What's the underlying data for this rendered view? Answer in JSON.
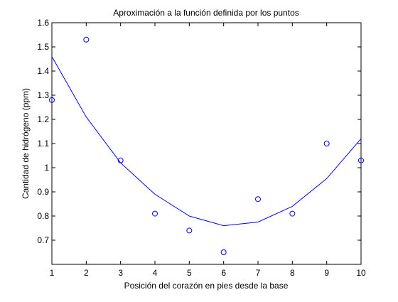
{
  "chart_data": {
    "type": "scatter",
    "title": "Aproximación a la función definida por los puntos",
    "xlabel": "Posición del corazón en pies desde la base",
    "ylabel": "Cantidad de hidrógeno (ppm)",
    "xlim": [
      1,
      10
    ],
    "ylim": [
      0.6,
      1.6
    ],
    "xticks": [
      "1",
      "2",
      "3",
      "4",
      "5",
      "6",
      "7",
      "8",
      "9",
      "10"
    ],
    "yticks": [
      "0.7",
      "0.8",
      "0.9",
      "1",
      "1.1",
      "1.2",
      "1.3",
      "1.4",
      "1.5",
      "1.6"
    ],
    "grid": false,
    "legend": "none",
    "series": [
      {
        "type": "scatter",
        "marker": "circle-open",
        "color": "#0000ff",
        "x": [
          1,
          2,
          3,
          4,
          5,
          6,
          7,
          8,
          9,
          10
        ],
        "y": [
          1.28,
          1.53,
          1.03,
          0.81,
          0.74,
          0.65,
          0.87,
          0.81,
          1.1,
          1.03
        ]
      },
      {
        "type": "line",
        "color": "#0000ff",
        "x": [
          1,
          2,
          3,
          4,
          5,
          6,
          7,
          8,
          9,
          10
        ],
        "y": [
          1.46,
          1.21,
          1.02,
          0.89,
          0.8,
          0.76,
          0.775,
          0.84,
          0.955,
          1.12
        ]
      }
    ]
  }
}
